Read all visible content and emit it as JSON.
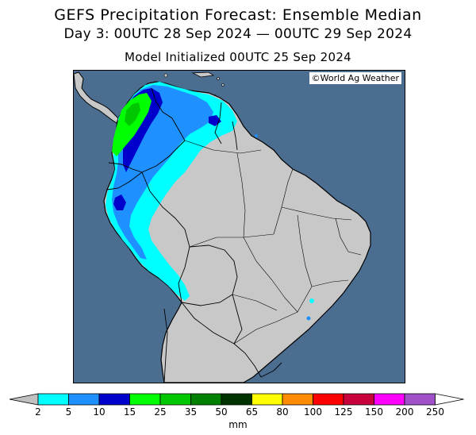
{
  "title": "GEFS Precipitation Forecast: Ensemble Median",
  "subtitle": "Day 3: 00UTC 28 Sep 2024 — 00UTC 29 Sep 2024",
  "init_line": "Model Initialized 00UTC 25 Sep 2024",
  "credit": "©World Ag Weather",
  "colors": {
    "ocean": "#4a6d90",
    "land": "#c8c8c8",
    "border": "#000000"
  },
  "legend": {
    "units": "mm",
    "ticks": [
      "2",
      "5",
      "10",
      "15",
      "25",
      "35",
      "50",
      "65",
      "80",
      "100",
      "125",
      "150",
      "200",
      "250"
    ],
    "colors": [
      "#00ffff",
      "#1e90ff",
      "#0000cd",
      "#00ff00",
      "#00c800",
      "#008000",
      "#003200",
      "#ffff00",
      "#ff8c00",
      "#ff0000",
      "#c8003c",
      "#ff00ff",
      "#a050c8"
    ],
    "left_arrow_color": "#c0c0c0",
    "right_arrow_color": "#ffffff"
  }
}
